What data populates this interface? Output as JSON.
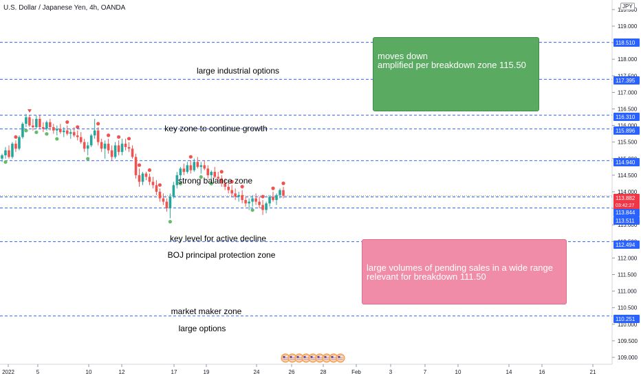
{
  "symbol": {
    "title": "U.S. Dollar / Japanese Yen, 4h, OANDA",
    "currency": "JPY"
  },
  "price_axis": {
    "ticks": [
      "119.500",
      "119.000",
      "118.500",
      "118.000",
      "117.500",
      "117.000",
      "116.500",
      "116.000",
      "115.500",
      "115.000",
      "114.500",
      "114.000",
      "113.500",
      "113.000",
      "112.500",
      "112.000",
      "111.500",
      "111.000",
      "110.500",
      "110.000",
      "109.500",
      "109.000"
    ],
    "level_labels": [
      {
        "value": "118.510",
        "color": "#2962ff"
      },
      {
        "value": "117.395",
        "color": "#2962ff"
      },
      {
        "value": "116.310",
        "color": "#2962ff"
      },
      {
        "value": "115.896",
        "color": "#2962ff"
      },
      {
        "value": "114.940",
        "color": "#2962ff"
      },
      {
        "value": "113.882",
        "color": "#f23645"
      },
      {
        "value": "03:42:27",
        "color": "#f23645"
      },
      {
        "value": "113.844",
        "color": "#2962ff"
      },
      {
        "value": "113.511",
        "color": "#2962ff"
      },
      {
        "value": "112.494",
        "color": "#2962ff"
      },
      {
        "value": "110.251",
        "color": "#2962ff"
      }
    ]
  },
  "time_axis": {
    "ticks": [
      "2022",
      "5",
      "10",
      "12",
      "17",
      "19",
      "24",
      "26",
      "28",
      "Feb",
      "3",
      "7",
      "10",
      "14",
      "16",
      "21"
    ]
  },
  "annotations": [
    "large industrial options",
    "key zone to continue growth",
    "strong balance zone",
    "key level for active decline",
    "BOJ principal protection zone",
    "market maker zone",
    "large options"
  ],
  "green_box": {
    "line1": "moves down",
    "line2": "amplified per breakdown zone 115.50",
    "color": "#4caf50"
  },
  "pink_box": {
    "line1": "large volumes of pending sales in a wide range",
    "line2": "relevant for breakdown 111.50",
    "color": "#f06292"
  },
  "colors": {
    "up": "#26a69a",
    "down": "#ef5350",
    "level_line": "#2962ff"
  },
  "event_icons": [
    "us-flag-icon",
    "us-flag-icon",
    "us-flag-icon",
    "us-flag-icon",
    "us-flag-icon",
    "us-flag-icon",
    "us-flag-icon",
    "us-flag-icon",
    "us-flag-icon"
  ],
  "chart_data": {
    "type": "candlestick",
    "ylim": [
      108.9,
      119.8
    ],
    "horizontal_levels": [
      118.51,
      117.395,
      116.31,
      115.896,
      114.94,
      113.844,
      113.511,
      112.494,
      110.251
    ],
    "last_price": 113.882,
    "candles": [
      {
        "o": 115.0,
        "h": 115.15,
        "l": 114.9,
        "c": 115.1
      },
      {
        "o": 115.1,
        "h": 115.35,
        "l": 115.0,
        "c": 115.25
      },
      {
        "o": 115.25,
        "h": 115.4,
        "l": 115.0,
        "c": 115.05
      },
      {
        "o": 115.05,
        "h": 115.5,
        "l": 115.0,
        "c": 115.45
      },
      {
        "o": 115.45,
        "h": 115.55,
        "l": 115.2,
        "c": 115.3
      },
      {
        "o": 115.3,
        "h": 115.7,
        "l": 115.25,
        "c": 115.65
      },
      {
        "o": 115.65,
        "h": 116.1,
        "l": 115.6,
        "c": 116.05
      },
      {
        "o": 116.05,
        "h": 116.35,
        "l": 115.95,
        "c": 116.25
      },
      {
        "o": 116.25,
        "h": 116.3,
        "l": 115.95,
        "c": 116.0
      },
      {
        "o": 116.0,
        "h": 116.2,
        "l": 115.85,
        "c": 115.95
      },
      {
        "o": 115.95,
        "h": 116.3,
        "l": 115.9,
        "c": 116.2
      },
      {
        "o": 116.2,
        "h": 116.3,
        "l": 115.9,
        "c": 115.95
      },
      {
        "o": 115.95,
        "h": 116.1,
        "l": 115.8,
        "c": 115.9
      },
      {
        "o": 115.9,
        "h": 116.15,
        "l": 115.85,
        "c": 116.1
      },
      {
        "o": 116.1,
        "h": 116.2,
        "l": 115.85,
        "c": 115.95
      },
      {
        "o": 115.95,
        "h": 116.05,
        "l": 115.75,
        "c": 115.85
      },
      {
        "o": 115.85,
        "h": 116.0,
        "l": 115.7,
        "c": 115.9
      },
      {
        "o": 115.9,
        "h": 116.05,
        "l": 115.75,
        "c": 115.8
      },
      {
        "o": 115.8,
        "h": 115.95,
        "l": 115.65,
        "c": 115.85
      },
      {
        "o": 115.85,
        "h": 116.0,
        "l": 115.7,
        "c": 115.75
      },
      {
        "o": 115.75,
        "h": 115.9,
        "l": 115.6,
        "c": 115.8
      },
      {
        "o": 115.8,
        "h": 115.95,
        "l": 115.65,
        "c": 115.7
      },
      {
        "o": 115.7,
        "h": 115.85,
        "l": 115.55,
        "c": 115.65
      },
      {
        "o": 115.65,
        "h": 115.8,
        "l": 115.45,
        "c": 115.5
      },
      {
        "o": 115.5,
        "h": 115.6,
        "l": 115.2,
        "c": 115.3
      },
      {
        "o": 115.3,
        "h": 115.5,
        "l": 115.1,
        "c": 115.4
      },
      {
        "o": 115.4,
        "h": 115.75,
        "l": 115.35,
        "c": 115.7
      },
      {
        "o": 115.7,
        "h": 116.2,
        "l": 115.6,
        "c": 115.85
      },
      {
        "o": 115.85,
        "h": 115.95,
        "l": 115.4,
        "c": 115.5
      },
      {
        "o": 115.5,
        "h": 115.6,
        "l": 115.2,
        "c": 115.3
      },
      {
        "o": 115.3,
        "h": 115.55,
        "l": 115.0,
        "c": 115.45
      },
      {
        "o": 115.45,
        "h": 115.6,
        "l": 115.15,
        "c": 115.25
      },
      {
        "o": 115.25,
        "h": 115.4,
        "l": 114.95,
        "c": 115.05
      },
      {
        "o": 115.05,
        "h": 115.5,
        "l": 115.0,
        "c": 115.4
      },
      {
        "o": 115.4,
        "h": 115.55,
        "l": 115.1,
        "c": 115.2
      },
      {
        "o": 115.2,
        "h": 115.6,
        "l": 115.1,
        "c": 115.45
      },
      {
        "o": 115.45,
        "h": 115.6,
        "l": 115.25,
        "c": 115.35
      },
      {
        "o": 115.35,
        "h": 115.5,
        "l": 115.2,
        "c": 115.3
      },
      {
        "o": 115.3,
        "h": 115.4,
        "l": 115.0,
        "c": 115.05
      },
      {
        "o": 115.05,
        "h": 115.15,
        "l": 114.4,
        "c": 114.5
      },
      {
        "o": 114.5,
        "h": 114.7,
        "l": 114.15,
        "c": 114.3
      },
      {
        "o": 114.3,
        "h": 114.6,
        "l": 114.2,
        "c": 114.55
      },
      {
        "o": 114.55,
        "h": 114.6,
        "l": 114.35,
        "c": 114.45
      },
      {
        "o": 114.45,
        "h": 114.55,
        "l": 114.2,
        "c": 114.3
      },
      {
        "o": 114.3,
        "h": 114.45,
        "l": 114.1,
        "c": 114.2
      },
      {
        "o": 114.2,
        "h": 114.35,
        "l": 113.9,
        "c": 114.0
      },
      {
        "o": 114.0,
        "h": 114.1,
        "l": 113.7,
        "c": 113.8
      },
      {
        "o": 113.8,
        "h": 113.95,
        "l": 113.6,
        "c": 113.7
      },
      {
        "o": 113.7,
        "h": 113.8,
        "l": 113.4,
        "c": 113.5
      },
      {
        "o": 113.5,
        "h": 113.95,
        "l": 113.2,
        "c": 113.85
      },
      {
        "o": 113.85,
        "h": 114.3,
        "l": 113.8,
        "c": 114.2
      },
      {
        "o": 114.2,
        "h": 114.6,
        "l": 114.1,
        "c": 114.5
      },
      {
        "o": 114.5,
        "h": 114.75,
        "l": 114.35,
        "c": 114.7
      },
      {
        "o": 114.7,
        "h": 114.85,
        "l": 114.5,
        "c": 114.6
      },
      {
        "o": 114.6,
        "h": 114.9,
        "l": 114.55,
        "c": 114.8
      },
      {
        "o": 114.8,
        "h": 114.95,
        "l": 114.55,
        "c": 114.65
      },
      {
        "o": 114.65,
        "h": 115.0,
        "l": 114.6,
        "c": 114.9
      },
      {
        "o": 114.9,
        "h": 115.05,
        "l": 114.7,
        "c": 114.75
      },
      {
        "o": 114.75,
        "h": 114.9,
        "l": 114.55,
        "c": 114.8
      },
      {
        "o": 114.8,
        "h": 114.95,
        "l": 114.65,
        "c": 114.7
      },
      {
        "o": 114.7,
        "h": 114.8,
        "l": 114.4,
        "c": 114.5
      },
      {
        "o": 114.5,
        "h": 114.65,
        "l": 114.35,
        "c": 114.6
      },
      {
        "o": 114.6,
        "h": 114.75,
        "l": 114.4,
        "c": 114.45
      },
      {
        "o": 114.45,
        "h": 114.6,
        "l": 114.3,
        "c": 114.4
      },
      {
        "o": 114.4,
        "h": 114.5,
        "l": 114.15,
        "c": 114.25
      },
      {
        "o": 114.25,
        "h": 114.4,
        "l": 114.05,
        "c": 114.15
      },
      {
        "o": 114.15,
        "h": 114.3,
        "l": 113.95,
        "c": 114.05
      },
      {
        "o": 114.05,
        "h": 114.2,
        "l": 113.85,
        "c": 113.95
      },
      {
        "o": 113.95,
        "h": 114.1,
        "l": 113.75,
        "c": 113.85
      },
      {
        "o": 113.85,
        "h": 114.0,
        "l": 113.7,
        "c": 113.9
      },
      {
        "o": 113.9,
        "h": 114.05,
        "l": 113.65,
        "c": 113.75
      },
      {
        "o": 113.75,
        "h": 113.85,
        "l": 113.55,
        "c": 113.65
      },
      {
        "o": 113.65,
        "h": 113.8,
        "l": 113.45,
        "c": 113.7
      },
      {
        "o": 113.7,
        "h": 113.9,
        "l": 113.55,
        "c": 113.8
      },
      {
        "o": 113.8,
        "h": 113.95,
        "l": 113.6,
        "c": 113.7
      },
      {
        "o": 113.7,
        "h": 113.85,
        "l": 113.5,
        "c": 113.6
      },
      {
        "o": 113.6,
        "h": 113.75,
        "l": 113.3,
        "c": 113.45
      },
      {
        "o": 113.45,
        "h": 113.7,
        "l": 113.35,
        "c": 113.65
      },
      {
        "o": 113.65,
        "h": 113.9,
        "l": 113.55,
        "c": 113.85
      },
      {
        "o": 113.85,
        "h": 114.0,
        "l": 113.7,
        "c": 113.75
      },
      {
        "o": 113.75,
        "h": 113.95,
        "l": 113.6,
        "c": 113.9
      },
      {
        "o": 113.9,
        "h": 114.1,
        "l": 113.8,
        "c": 114.05
      },
      {
        "o": 114.05,
        "h": 114.15,
        "l": 113.8,
        "c": 113.88
      }
    ]
  }
}
